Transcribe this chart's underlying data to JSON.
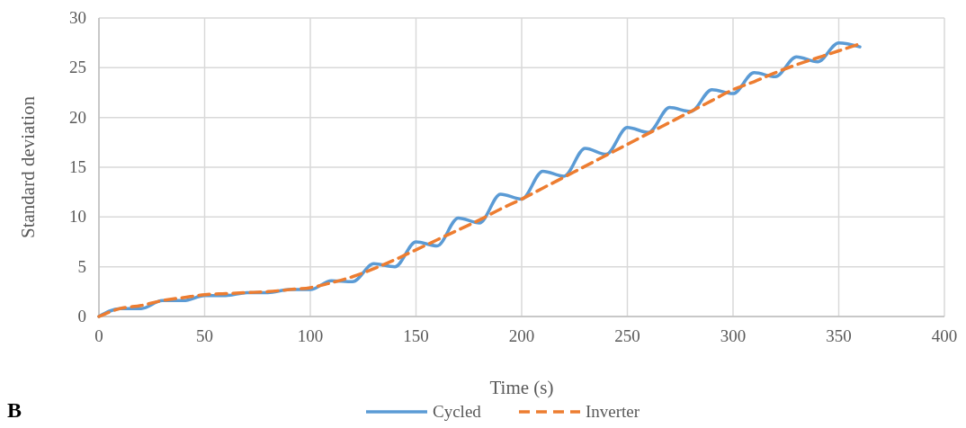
{
  "chart_data": {
    "type": "line",
    "xlabel": "Time (s)",
    "ylabel": "Standard deviation",
    "annotations": [
      "B"
    ],
    "xlim": [
      0,
      400
    ],
    "xticks": [
      0,
      50,
      100,
      150,
      200,
      250,
      300,
      350,
      400
    ],
    "ylim": [
      0,
      30
    ],
    "yticks": [
      0,
      5,
      10,
      15,
      20,
      25,
      30
    ],
    "grid": true,
    "legend": "bottom",
    "x": [
      0,
      10,
      20,
      30,
      40,
      50,
      60,
      70,
      80,
      90,
      100,
      110,
      120,
      130,
      140,
      150,
      160,
      170,
      180,
      190,
      200,
      210,
      220,
      230,
      240,
      250,
      260,
      270,
      280,
      290,
      300,
      310,
      320,
      330,
      340,
      350,
      360
    ],
    "series": [
      {
        "name": "Cycled",
        "color": "#5b9bd5",
        "line_style": "solid",
        "values": [
          0,
          0.8,
          0.8,
          1.6,
          1.6,
          2.1,
          2.1,
          2.4,
          2.4,
          2.7,
          2.7,
          3.6,
          3.5,
          5.3,
          5.0,
          7.5,
          7.1,
          9.9,
          9.4,
          12.3,
          11.8,
          14.6,
          14.1,
          16.9,
          16.3,
          19.0,
          18.5,
          21.0,
          20.6,
          22.8,
          22.4,
          24.5,
          24.1,
          26.1,
          25.6,
          27.5,
          27.1
        ]
      },
      {
        "name": "Inverter",
        "color": "#ed7d31",
        "line_style": "dashed",
        "values": [
          0,
          0.8,
          1.1,
          1.6,
          1.9,
          2.2,
          2.3,
          2.4,
          2.5,
          2.7,
          2.9,
          3.4,
          4.0,
          4.8,
          5.7,
          6.7,
          7.7,
          8.7,
          9.7,
          10.8,
          11.8,
          12.9,
          14.0,
          15.1,
          16.2,
          17.3,
          18.4,
          19.5,
          20.6,
          21.7,
          22.8,
          23.6,
          24.5,
          25.3,
          26.0,
          26.7,
          27.4
        ]
      }
    ]
  }
}
